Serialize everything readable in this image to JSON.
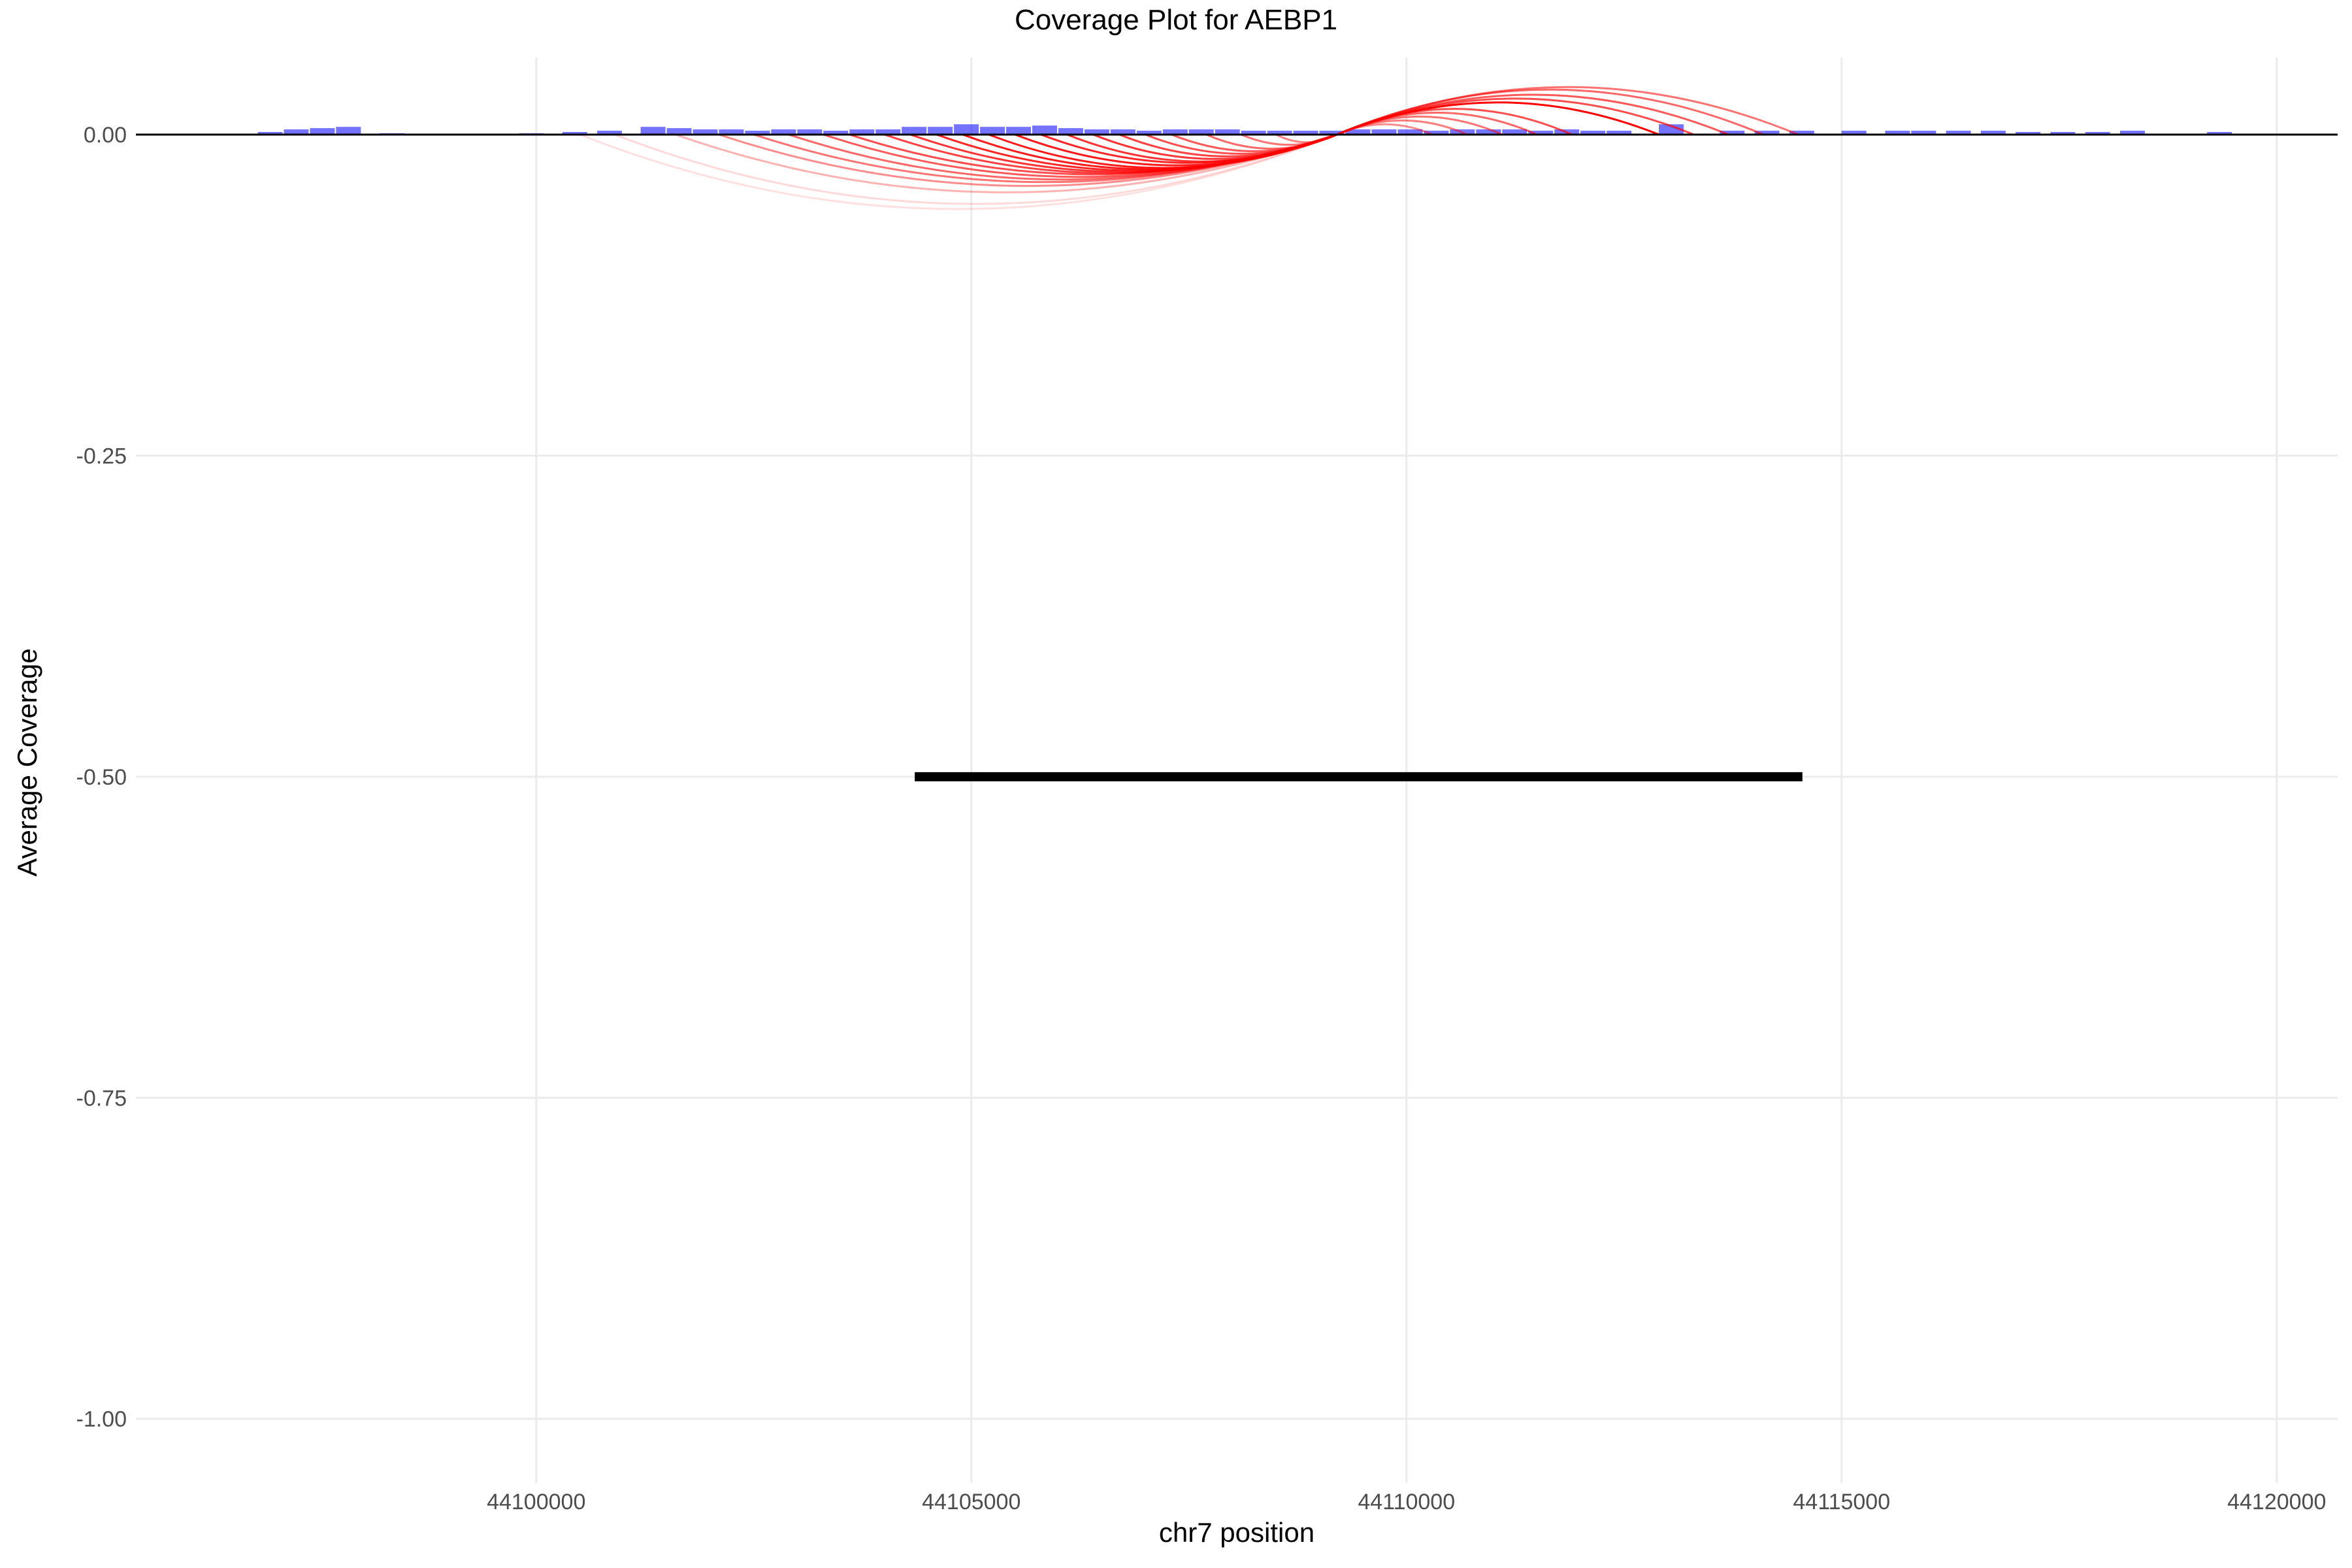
{
  "chart_data": {
    "type": "line",
    "title": "Coverage Plot for AEBP1",
    "xlabel": "chr7 position",
    "ylabel": "Average Coverage",
    "xlim": [
      44095400,
      44120700
    ],
    "ylim": [
      -1.05,
      0.06
    ],
    "x_ticks": [
      44100000,
      44105000,
      44110000,
      44115000,
      44120000
    ],
    "x_tick_labels": [
      "44100000",
      "44105000",
      "44110000",
      "44115000",
      "44120000"
    ],
    "y_ticks": [
      0.0,
      -0.25,
      -0.5,
      -0.75,
      -1.0
    ],
    "y_tick_labels": [
      "0.00",
      "-0.25",
      "-0.50",
      "-0.75",
      "-1.00"
    ],
    "grid": true,
    "series": [
      {
        "kind": "coverage_bars",
        "color": "#0000ff",
        "bin_width": 300,
        "x": [
          44096800,
          44097100,
          44097400,
          44097700,
          44098200,
          44099800,
          44100300,
          44100700,
          44101200,
          44101500,
          44101800,
          44102100,
          44102400,
          44102700,
          44103000,
          44103300,
          44103600,
          44103900,
          44104200,
          44104500,
          44104800,
          44105100,
          44105400,
          44105700,
          44106000,
          44106300,
          44106600,
          44106900,
          44107200,
          44107500,
          44107800,
          44108100,
          44108400,
          44108700,
          44109000,
          44109300,
          44109600,
          44109900,
          44110200,
          44110500,
          44110800,
          44111100,
          44111400,
          44111700,
          44112000,
          44112300,
          44112900,
          44113600,
          44114000,
          44114400,
          44115000,
          44115500,
          44115800,
          44116200,
          44116600,
          44117000,
          44117400,
          44117800,
          44118200,
          44119200
        ],
        "values": [
          0.002,
          0.004,
          0.005,
          0.006,
          0.001,
          0.001,
          0.002,
          0.003,
          0.006,
          0.005,
          0.004,
          0.004,
          0.003,
          0.004,
          0.004,
          0.003,
          0.004,
          0.004,
          0.006,
          0.006,
          0.008,
          0.006,
          0.006,
          0.007,
          0.005,
          0.004,
          0.004,
          0.003,
          0.004,
          0.004,
          0.004,
          0.003,
          0.003,
          0.003,
          0.003,
          0.004,
          0.004,
          0.004,
          0.003,
          0.004,
          0.004,
          0.004,
          0.003,
          0.004,
          0.003,
          0.003,
          0.008,
          0.003,
          0.003,
          0.003,
          0.003,
          0.003,
          0.003,
          0.003,
          0.003,
          0.002,
          0.002,
          0.002,
          0.003,
          0.002
        ]
      },
      {
        "kind": "junction_arcs",
        "color": "#ff0000",
        "arcs": [
          {
            "start": 44100500,
            "end": 44109200,
            "depth": -0.058,
            "opacity": 0.12
          },
          {
            "start": 44100900,
            "end": 44109200,
            "depth": -0.054,
            "opacity": 0.15
          },
          {
            "start": 44101600,
            "end": 44109200,
            "depth": -0.045,
            "opacity": 0.3
          },
          {
            "start": 44102100,
            "end": 44109200,
            "depth": -0.04,
            "opacity": 0.45
          },
          {
            "start": 44102500,
            "end": 44109200,
            "depth": -0.037,
            "opacity": 0.55
          },
          {
            "start": 44102900,
            "end": 44109200,
            "depth": -0.035,
            "opacity": 0.6
          },
          {
            "start": 44103300,
            "end": 44109200,
            "depth": -0.033,
            "opacity": 0.65
          },
          {
            "start": 44103600,
            "end": 44109200,
            "depth": -0.031,
            "opacity": 0.7
          },
          {
            "start": 44104000,
            "end": 44109200,
            "depth": -0.03,
            "opacity": 0.75
          },
          {
            "start": 44104300,
            "end": 44109200,
            "depth": -0.029,
            "opacity": 0.8
          },
          {
            "start": 44104600,
            "end": 44109200,
            "depth": -0.028,
            "opacity": 0.85
          },
          {
            "start": 44104900,
            "end": 44109200,
            "depth": -0.027,
            "opacity": 0.9
          },
          {
            "start": 44105200,
            "end": 44109200,
            "depth": -0.026,
            "opacity": 0.9
          },
          {
            "start": 44105500,
            "end": 44109200,
            "depth": -0.024,
            "opacity": 0.9
          },
          {
            "start": 44105800,
            "end": 44109200,
            "depth": -0.022,
            "opacity": 0.85
          },
          {
            "start": 44106100,
            "end": 44109200,
            "depth": -0.021,
            "opacity": 0.8
          },
          {
            "start": 44106400,
            "end": 44109200,
            "depth": -0.019,
            "opacity": 0.8
          },
          {
            "start": 44106700,
            "end": 44109200,
            "depth": -0.017,
            "opacity": 0.75
          },
          {
            "start": 44107000,
            "end": 44109200,
            "depth": -0.015,
            "opacity": 0.7
          },
          {
            "start": 44107300,
            "end": 44109200,
            "depth": -0.013,
            "opacity": 0.65
          },
          {
            "start": 44107700,
            "end": 44109200,
            "depth": -0.011,
            "opacity": 0.6
          },
          {
            "start": 44108100,
            "end": 44109200,
            "depth": -0.008,
            "opacity": 0.55
          },
          {
            "start": 44108500,
            "end": 44109200,
            "depth": -0.006,
            "opacity": 0.5
          },
          {
            "start": 44109200,
            "end": 44114500,
            "depth": 0.037,
            "opacity": 0.55
          },
          {
            "start": 44109200,
            "end": 44114100,
            "depth": 0.035,
            "opacity": 0.6
          },
          {
            "start": 44109200,
            "end": 44113700,
            "depth": 0.031,
            "opacity": 0.65
          },
          {
            "start": 44109200,
            "end": 44113300,
            "depth": 0.028,
            "opacity": 0.7
          },
          {
            "start": 44109200,
            "end": 44112900,
            "depth": 0.025,
            "opacity": 1.0
          },
          {
            "start": 44109200,
            "end": 44111900,
            "depth": 0.02,
            "opacity": 0.7
          },
          {
            "start": 44109200,
            "end": 44111500,
            "depth": 0.017,
            "opacity": 0.6
          },
          {
            "start": 44109200,
            "end": 44111100,
            "depth": 0.014,
            "opacity": 0.55
          },
          {
            "start": 44109200,
            "end": 44110700,
            "depth": 0.011,
            "opacity": 0.5
          },
          {
            "start": 44109200,
            "end": 44110300,
            "depth": 0.008,
            "opacity": 0.45
          }
        ]
      },
      {
        "kind": "gene_segment",
        "color": "#000000",
        "start": 44104350,
        "end": 44114550,
        "y": -0.5
      }
    ]
  }
}
